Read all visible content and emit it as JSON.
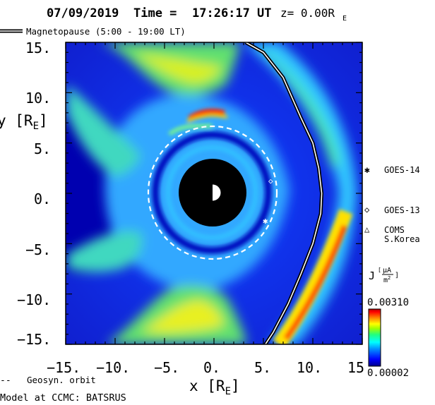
{
  "header": {
    "date": "07/09/2019",
    "time_label": "Time =",
    "time": "17:26:17",
    "ut": "UT",
    "z": "z= 0.00R",
    "z_sub": "E"
  },
  "legend": {
    "magnetopause": "Magnetopause (5:00 - 19:00 LT)",
    "geosyn": "Geosyn. orbit",
    "model": "Model at CCMC: BATSRUS"
  },
  "satellites": [
    {
      "symbol": "✱",
      "name": "GOES-14"
    },
    {
      "symbol": "◇",
      "name": "GOES-13"
    },
    {
      "symbol": "△",
      "name": "COMS",
      "name2": "S.Korea"
    }
  ],
  "colorbar": {
    "label": "J",
    "unit_num": "μA",
    "unit_den": "m",
    "unit_den_sup": "2",
    "max": "0.00310",
    "min": "0.00002",
    "colors": [
      "#00008b",
      "#0000ff",
      "#0080ff",
      "#00ffff",
      "#00ff80",
      "#80ff00",
      "#ffff00",
      "#ff8000",
      "#ff0000",
      "#a00000"
    ]
  },
  "chart_data": {
    "type": "heatmap",
    "title": "07/09/2019 Time = 17:26:17 UT z= 0.00RE",
    "xlabel": "x [RE]",
    "ylabel": "y [RE]",
    "xlim": [
      -15,
      15
    ],
    "ylim": [
      -15,
      15
    ],
    "x_ticks": [
      "−15.",
      "−10.",
      "−5.",
      "0.",
      "5.",
      "10.",
      "15"
    ],
    "y_ticks": [
      "15.",
      "10.",
      "5.",
      "0.",
      "−5.",
      "−10.",
      "−15."
    ],
    "x_tick_values": [
      -15,
      -10,
      -5,
      0,
      5,
      10,
      15
    ],
    "y_tick_values": [
      15,
      10,
      5,
      0,
      -5,
      -10,
      -15
    ],
    "colorbar_range": [
      2e-05,
      0.0031
    ],
    "geosynchronous_orbit_radius": 6.6,
    "earth_radius": 3.5,
    "satellites": [
      {
        "name": "GOES-14",
        "x": 5.6,
        "y": -2.8
      },
      {
        "name": "GOES-13",
        "x": 6.1,
        "y": 1.2
      }
    ],
    "magnetopause": [
      [
        3.2,
        15
      ],
      [
        5,
        14
      ],
      [
        7,
        11.5
      ],
      [
        8.8,
        7.5
      ],
      [
        10,
        5
      ],
      [
        10.6,
        2.5
      ],
      [
        10.9,
        0
      ],
      [
        10.8,
        -2
      ],
      [
        10,
        -5
      ],
      [
        8.8,
        -8
      ],
      [
        7.5,
        -11
      ],
      [
        6,
        -13.8
      ],
      [
        5.2,
        -15
      ]
    ]
  }
}
